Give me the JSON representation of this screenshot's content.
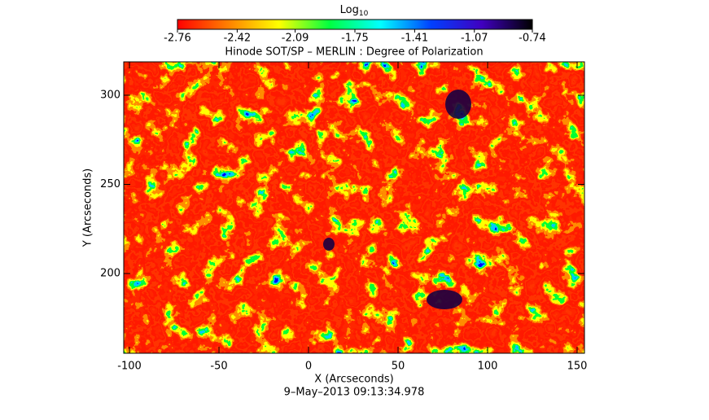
{
  "chart_data": {
    "type": "heatmap",
    "title": "Hinode SOT/SP – MERLIN : Degree of Polarization",
    "x_label": "X (Arcseconds)",
    "y_label": "Y (Arcseconds)",
    "footer": "9–May–2013 09:13:34.978",
    "xlim": [
      -103.2,
      154.1
    ],
    "xticks": [
      -100,
      -50,
      0,
      50,
      100,
      150
    ],
    "ylim": [
      155.3,
      318.7
    ],
    "yticks": [
      200,
      250,
      300
    ],
    "colorbar": {
      "label": "Log",
      "label_sub": "10",
      "clim": [
        -2.76,
        -0.74
      ],
      "ticks": [
        -2.76,
        -2.42,
        -2.09,
        -1.75,
        -1.41,
        -1.07,
        -0.74
      ],
      "colormap": [
        "#ff0000",
        "#ff8000",
        "#ffff00",
        "#00ff40",
        "#00ffff",
        "#0040ff",
        "#4000c0",
        "#000000"
      ]
    }
  }
}
